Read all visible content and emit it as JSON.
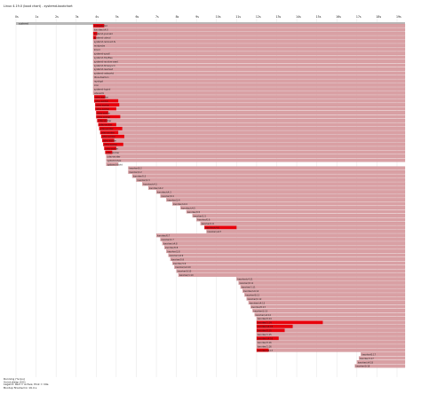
{
  "chart_data": {
    "type": "bar",
    "title": "Linux 4.19.0 (boot chart) - systemd-bootchart",
    "x_axis": {
      "unit": "s",
      "tick_labels": [
        "0s",
        "1s",
        "2s",
        "3s",
        "4s",
        "5s",
        "6s",
        "7s",
        "8s",
        "9s",
        "10s",
        "11s",
        "12s",
        "13s",
        "14s",
        "15s",
        "16s",
        "17s",
        "18s",
        "19s"
      ],
      "xlim": [
        0,
        19.4
      ]
    },
    "top_bar": {
      "label": "systemd",
      "start": 0.0,
      "end": 19.4
    },
    "tasks": [
      {
        "label": "init/systemd",
        "start": 3.85,
        "end": 19.4,
        "active": [
          [
            3.85,
            4.4
          ]
        ]
      },
      {
        "label": "kworker/u4:0",
        "start": 3.85,
        "end": 19.4,
        "active": []
      },
      {
        "label": "systemd-journald",
        "start": 3.85,
        "end": 19.4,
        "active": [
          [
            3.85,
            4.05
          ]
        ]
      },
      {
        "label": "systemd-udevd",
        "start": 3.85,
        "end": 19.4,
        "active": [
          [
            3.85,
            4.0
          ]
        ]
      },
      {
        "label": "systemd-remount-fs",
        "start": 3.85,
        "end": 19.4,
        "active": []
      },
      {
        "label": "modprobe",
        "start": 3.85,
        "end": 19.4,
        "active": []
      },
      {
        "label": "kmod",
        "start": 3.85,
        "end": 19.4,
        "active": []
      },
      {
        "label": "systemd-sysctl",
        "start": 3.85,
        "end": 19.4,
        "active": []
      },
      {
        "label": "systemd-tmpfiles",
        "start": 3.85,
        "end": 19.4,
        "active": []
      },
      {
        "label": "systemd-random-seed",
        "start": 3.85,
        "end": 19.4,
        "active": []
      },
      {
        "label": "systemd-timesyncd",
        "start": 3.85,
        "end": 19.4,
        "active": []
      },
      {
        "label": "systemd-resolved",
        "start": 3.85,
        "end": 19.4,
        "active": []
      },
      {
        "label": "systemd-networkd",
        "start": 3.85,
        "end": 19.4,
        "active": []
      },
      {
        "label": "dbus-daemon",
        "start": 3.85,
        "end": 19.4,
        "active": []
      },
      {
        "label": "rsyslogd",
        "start": 3.85,
        "end": 19.4,
        "active": []
      },
      {
        "label": "cron",
        "start": 3.85,
        "end": 19.4,
        "active": []
      },
      {
        "label": "systemd-logind",
        "start": 3.85,
        "end": 19.4,
        "active": []
      },
      {
        "label": "udevadm",
        "start": 3.85,
        "end": 19.4,
        "active": []
      },
      {
        "label": "udev-worker",
        "start": 3.9,
        "end": 19.4,
        "active": [
          [
            3.9,
            4.45
          ]
        ]
      },
      {
        "label": "udev-worker",
        "start": 3.9,
        "end": 19.4,
        "active": [
          [
            3.9,
            5.1
          ]
        ]
      },
      {
        "label": "udev-worker",
        "start": 3.95,
        "end": 19.4,
        "active": [
          [
            3.95,
            5.15
          ]
        ]
      },
      {
        "label": "udev-worker",
        "start": 3.95,
        "end": 19.4,
        "active": [
          [
            3.95,
            5.0
          ]
        ]
      },
      {
        "label": "udev-worker",
        "start": 4.0,
        "end": 19.4,
        "active": [
          [
            4.0,
            4.6
          ]
        ]
      },
      {
        "label": "udev-worker",
        "start": 4.0,
        "end": 19.4,
        "active": [
          [
            4.0,
            5.2
          ]
        ]
      },
      {
        "label": "udev-worker",
        "start": 4.05,
        "end": 19.4,
        "active": [
          [
            4.05,
            4.55
          ]
        ]
      },
      {
        "label": "udev-worker",
        "start": 4.1,
        "end": 19.4,
        "active": [
          [
            4.1,
            5.0
          ]
        ]
      },
      {
        "label": "udev-worker",
        "start": 4.15,
        "end": 19.4,
        "active": [
          [
            4.15,
            5.3
          ]
        ]
      },
      {
        "label": "udev-worker",
        "start": 4.2,
        "end": 19.4,
        "active": [
          [
            4.2,
            5.1
          ]
        ]
      },
      {
        "label": "udev-worker",
        "start": 4.25,
        "end": 19.4,
        "active": [
          [
            4.25,
            5.4
          ]
        ]
      },
      {
        "label": "udev-worker",
        "start": 4.3,
        "end": 19.4,
        "active": [
          [
            4.3,
            4.9
          ]
        ]
      },
      {
        "label": "udev-worker",
        "start": 4.35,
        "end": 19.4,
        "active": [
          [
            4.35,
            5.35
          ]
        ]
      },
      {
        "label": "udev-worker",
        "start": 4.4,
        "end": 19.4,
        "active": [
          [
            4.4,
            5.0
          ]
        ]
      },
      {
        "label": "udev-worker",
        "start": 4.45,
        "end": 19.4,
        "active": [
          [
            4.45,
            4.8
          ]
        ]
      },
      {
        "label": "udev-worker",
        "start": 4.5,
        "end": 19.4,
        "active": []
      },
      {
        "label": "systemd-fsck",
        "start": 4.5,
        "end": 19.4,
        "active": []
      },
      {
        "label": "systemd-fsckd",
        "start": 4.5,
        "end": 5.1,
        "active": []
      },
      {
        "label": "kworker/0:2",
        "start": 5.6,
        "end": 19.4,
        "active": []
      },
      {
        "label": "kworker/1:2",
        "start": 5.6,
        "end": 19.4,
        "active": []
      },
      {
        "label": "kworker/0:3",
        "start": 5.8,
        "end": 19.4,
        "active": []
      },
      {
        "label": "kworker/1:3",
        "start": 6.0,
        "end": 19.4,
        "active": []
      },
      {
        "label": "kworker/u4:1",
        "start": 6.3,
        "end": 19.4,
        "active": []
      },
      {
        "label": "kworker/u4:2",
        "start": 6.6,
        "end": 19.4,
        "active": []
      },
      {
        "label": "kworker/u4:3",
        "start": 7.0,
        "end": 19.4,
        "active": []
      },
      {
        "label": "kworker/0:4",
        "start": 7.2,
        "end": 19.4,
        "active": []
      },
      {
        "label": "kworker/1:4",
        "start": 7.5,
        "end": 19.4,
        "active": []
      },
      {
        "label": "kworker/u4:4",
        "start": 7.8,
        "end": 19.4,
        "active": []
      },
      {
        "label": "kworker/u4:5",
        "start": 8.2,
        "end": 19.4,
        "active": []
      },
      {
        "label": "kworker/0:5",
        "start": 8.5,
        "end": 19.4,
        "active": []
      },
      {
        "label": "kworker/1:5",
        "start": 8.8,
        "end": 19.4,
        "active": []
      },
      {
        "label": "kworker/0:6",
        "start": 9.0,
        "end": 19.4,
        "active": []
      },
      {
        "label": "kworker/1:6",
        "start": 9.2,
        "end": 19.4,
        "active": []
      },
      {
        "label": "kworker/u4:6",
        "start": 9.4,
        "end": 19.4,
        "active": [
          [
            9.4,
            11.0
          ]
        ]
      },
      {
        "label": "kworker/u4:7",
        "start": 9.5,
        "end": 19.4,
        "active": []
      },
      {
        "label": "kworker/0:7",
        "start": 7.0,
        "end": 19.4,
        "active": []
      },
      {
        "label": "kworker/1:7",
        "start": 7.2,
        "end": 19.4,
        "active": []
      },
      {
        "label": "kworker/u4:8",
        "start": 7.3,
        "end": 19.4,
        "active": []
      },
      {
        "label": "kworker/0:8",
        "start": 7.4,
        "end": 19.4,
        "active": []
      },
      {
        "label": "kworker/1:8",
        "start": 7.5,
        "end": 19.4,
        "active": []
      },
      {
        "label": "kworker/u4:9",
        "start": 7.6,
        "end": 19.4,
        "active": []
      },
      {
        "label": "kworker/0:9",
        "start": 7.7,
        "end": 19.4,
        "active": []
      },
      {
        "label": "kworker/1:9",
        "start": 7.8,
        "end": 19.4,
        "active": []
      },
      {
        "label": "kworker/u4:10",
        "start": 7.9,
        "end": 19.4,
        "active": []
      },
      {
        "label": "kworker/0:10",
        "start": 8.0,
        "end": 19.4,
        "active": []
      },
      {
        "label": "kworker/1:10",
        "start": 8.1,
        "end": 19.4,
        "active": []
      },
      {
        "label": "kworker/u4:11",
        "start": 11.0,
        "end": 19.4,
        "active": []
      },
      {
        "label": "kworker/0:11",
        "start": 11.1,
        "end": 19.4,
        "active": []
      },
      {
        "label": "kworker/1:11",
        "start": 11.2,
        "end": 19.4,
        "active": []
      },
      {
        "label": "kworker/u4:12",
        "start": 11.3,
        "end": 19.4,
        "active": []
      },
      {
        "label": "kworker/0:12",
        "start": 11.4,
        "end": 19.4,
        "active": []
      },
      {
        "label": "kworker/1:12",
        "start": 11.5,
        "end": 19.4,
        "active": []
      },
      {
        "label": "kworker/u4:13",
        "start": 11.6,
        "end": 19.4,
        "active": []
      },
      {
        "label": "kworker/0:13",
        "start": 11.7,
        "end": 19.4,
        "active": []
      },
      {
        "label": "kworker/1:13",
        "start": 11.8,
        "end": 19.4,
        "active": []
      },
      {
        "label": "kworker/u4:14",
        "start": 11.9,
        "end": 19.4,
        "active": []
      },
      {
        "label": "kworker/0:14",
        "start": 12.0,
        "end": 19.4,
        "active": []
      },
      {
        "label": "kworker/1:14",
        "start": 12.0,
        "end": 19.4,
        "active": [
          [
            12.0,
            15.3
          ]
        ]
      },
      {
        "label": "kworker/u4:15",
        "start": 12.0,
        "end": 19.4,
        "active": [
          [
            12.0,
            13.8
          ]
        ]
      },
      {
        "label": "kworker/0:15",
        "start": 12.0,
        "end": 19.4,
        "active": [
          [
            12.0,
            13.4
          ]
        ]
      },
      {
        "label": "kworker/1:15",
        "start": 12.0,
        "end": 19.4,
        "active": []
      },
      {
        "label": "kworker/u4:16",
        "start": 12.0,
        "end": 19.4,
        "active": [
          [
            12.0,
            13.1
          ]
        ]
      },
      {
        "label": "kworker/0:16",
        "start": 12.0,
        "end": 19.4,
        "active": []
      },
      {
        "label": "kworker/1:16",
        "start": 12.0,
        "end": 19.4,
        "active": []
      },
      {
        "label": "kworker/u4:17",
        "start": 12.0,
        "end": 19.4,
        "active": [
          [
            12.0,
            12.6
          ]
        ]
      },
      {
        "label": "kworker/0:17",
        "start": 17.2,
        "end": 19.4,
        "active": []
      },
      {
        "label": "kworker/1:17",
        "start": 17.1,
        "end": 19.4,
        "active": []
      },
      {
        "label": "kworker/u4:18",
        "start": 17.0,
        "end": 19.4,
        "active": []
      },
      {
        "label": "kworker/0:18",
        "start": 16.9,
        "end": 19.4,
        "active": []
      }
    ],
    "legend": [
      "Running (%cpu)",
      "Unint.sleep (I/O)"
    ],
    "footer": [
      "Legend: Red = Active; Pink = Idle",
      "Bootup finished in 19.4 s"
    ],
    "colors": {
      "active": "#e8000b",
      "idle": "#d9a0a4",
      "top_bar": "#b8b8b8",
      "grid": "#dddddd",
      "text": "#222222"
    }
  }
}
